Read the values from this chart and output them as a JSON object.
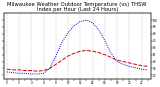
{
  "title": "Milwaukee Weather Outdoor Temperature (vs) THSW Index per Hour (Last 24 Hours)",
  "hours": [
    0,
    1,
    2,
    3,
    4,
    5,
    6,
    7,
    8,
    9,
    10,
    11,
    12,
    13,
    14,
    15,
    16,
    17,
    18,
    19,
    20,
    21,
    22,
    23
  ],
  "temp": [
    29,
    28,
    28,
    27,
    27,
    26,
    27,
    30,
    36,
    42,
    48,
    52,
    55,
    56,
    55,
    53,
    50,
    46,
    42,
    40,
    38,
    36,
    34,
    33
  ],
  "thsw": [
    25,
    24,
    23,
    23,
    22,
    22,
    23,
    30,
    48,
    68,
    82,
    92,
    98,
    100,
    96,
    86,
    70,
    52,
    40,
    36,
    33,
    31,
    29,
    28
  ],
  "temp_color": "#cc0000",
  "thsw_color": "#0000cc",
  "bg_color": "#ffffff",
  "grid_color": "#888888",
  "ylim": [
    15,
    110
  ],
  "yticks_right": [
    20,
    30,
    40,
    50,
    60,
    70,
    80,
    90,
    100
  ],
  "ytick_labels_right": [
    "20",
    "30",
    "40",
    "50",
    "60",
    "70",
    "80",
    "90",
    "100"
  ],
  "title_fontsize": 3.8,
  "line_width": 0.7,
  "figsize": [
    1.6,
    0.87
  ],
  "dpi": 100
}
